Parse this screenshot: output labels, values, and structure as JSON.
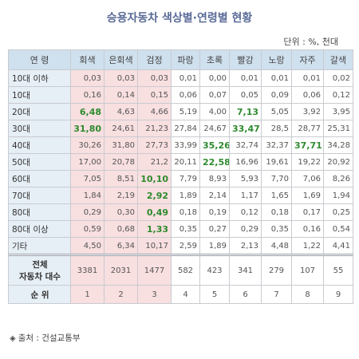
{
  "title": "승용자동차 색상별·연령별 현황",
  "unit": "단위 : %, 천대",
  "headers": [
    "연 령",
    "회색",
    "은회색",
    "검정",
    "파랑",
    "초록",
    "빨강",
    "노랑",
    "자주",
    "갈색"
  ],
  "rows": [
    {
      "age": "10대 이하",
      "values": [
        "0,03",
        "0,03",
        "0,03",
        "0,01",
        "0,00",
        "0,01",
        "0,01",
        "0,01",
        "0,02"
      ]
    },
    {
      "age": "10대",
      "values": [
        "0,16",
        "0,14",
        "0,15",
        "0,06",
        "0,07",
        "0,05",
        "0,09",
        "0,06",
        "0,12"
      ]
    },
    {
      "age": "20대",
      "values": [
        "6,48",
        "4,63",
        "4,66",
        "5,19",
        "4,00",
        "7,13",
        "5,05",
        "3,92",
        "3,95"
      ]
    },
    {
      "age": "30대",
      "values": [
        "31,80",
        "24,61",
        "21,23",
        "27,84",
        "24,67",
        "33,47",
        "28,5",
        "28,77",
        "25,31"
      ]
    },
    {
      "age": "40대",
      "values": [
        "30,26",
        "31,80",
        "27,73",
        "33,99",
        "35,26",
        "32,74",
        "32,37",
        "37,71",
        "34,28"
      ]
    },
    {
      "age": "50대",
      "values": [
        "17,00",
        "20,78",
        "21,2",
        "20,11",
        "22,58",
        "16,96",
        "19,61",
        "19,22",
        "20,92"
      ]
    },
    {
      "age": "60대",
      "values": [
        "7,05",
        "8,51",
        "10,10",
        "7,79",
        "8,93",
        "5,93",
        "7,70",
        "7,06",
        "8,26"
      ]
    },
    {
      "age": "70대",
      "values": [
        "1,84",
        "2,19",
        "2,92",
        "1,89",
        "2,14",
        "1,17",
        "1,65",
        "1,69",
        "1,94"
      ]
    },
    {
      "age": "80대",
      "values": [
        "0,29",
        "0,30",
        "0,49",
        "0,18",
        "0,19",
        "0,12",
        "0,18",
        "0,17",
        "0,25"
      ]
    },
    {
      "age": "80대 이상",
      "values": [
        "0,59",
        "0,68",
        "1,33",
        "0,35",
        "0,27",
        "0,29",
        "0,35",
        "0,16",
        "0,54"
      ]
    },
    {
      "age": "기타",
      "values": [
        "4,50",
        "6,34",
        "10,17",
        "2,59",
        "1,89",
        "2,13",
        "4,48",
        "1,22",
        "4,41"
      ]
    }
  ],
  "highlights": [
    [
      2,
      0
    ],
    [
      2,
      5
    ],
    [
      3,
      0
    ],
    [
      3,
      5
    ],
    [
      4,
      4
    ],
    [
      4,
      7
    ],
    [
      5,
      4
    ],
    [
      6,
      2
    ],
    [
      7,
      2
    ],
    [
      8,
      2
    ],
    [
      9,
      2
    ]
  ],
  "total": {
    "label_line1": "전체",
    "label_line2": "자동차 대수",
    "values": [
      "3381",
      "2031",
      "1477",
      "582",
      "423",
      "341",
      "279",
      "107",
      "55"
    ]
  },
  "rank": {
    "label": "순 위",
    "values": [
      "1",
      "2",
      "3",
      "4",
      "5",
      "6",
      "7",
      "8",
      "9"
    ]
  },
  "source": "출처 : 건설교통부",
  "source_icon": "◈",
  "colors": {
    "title": "#5a6b98",
    "header_bg": "#cfe0ee",
    "pink": "#f8dfe0",
    "highlight_text": "#2d8a2d",
    "age_bg": "#e7eff6"
  }
}
